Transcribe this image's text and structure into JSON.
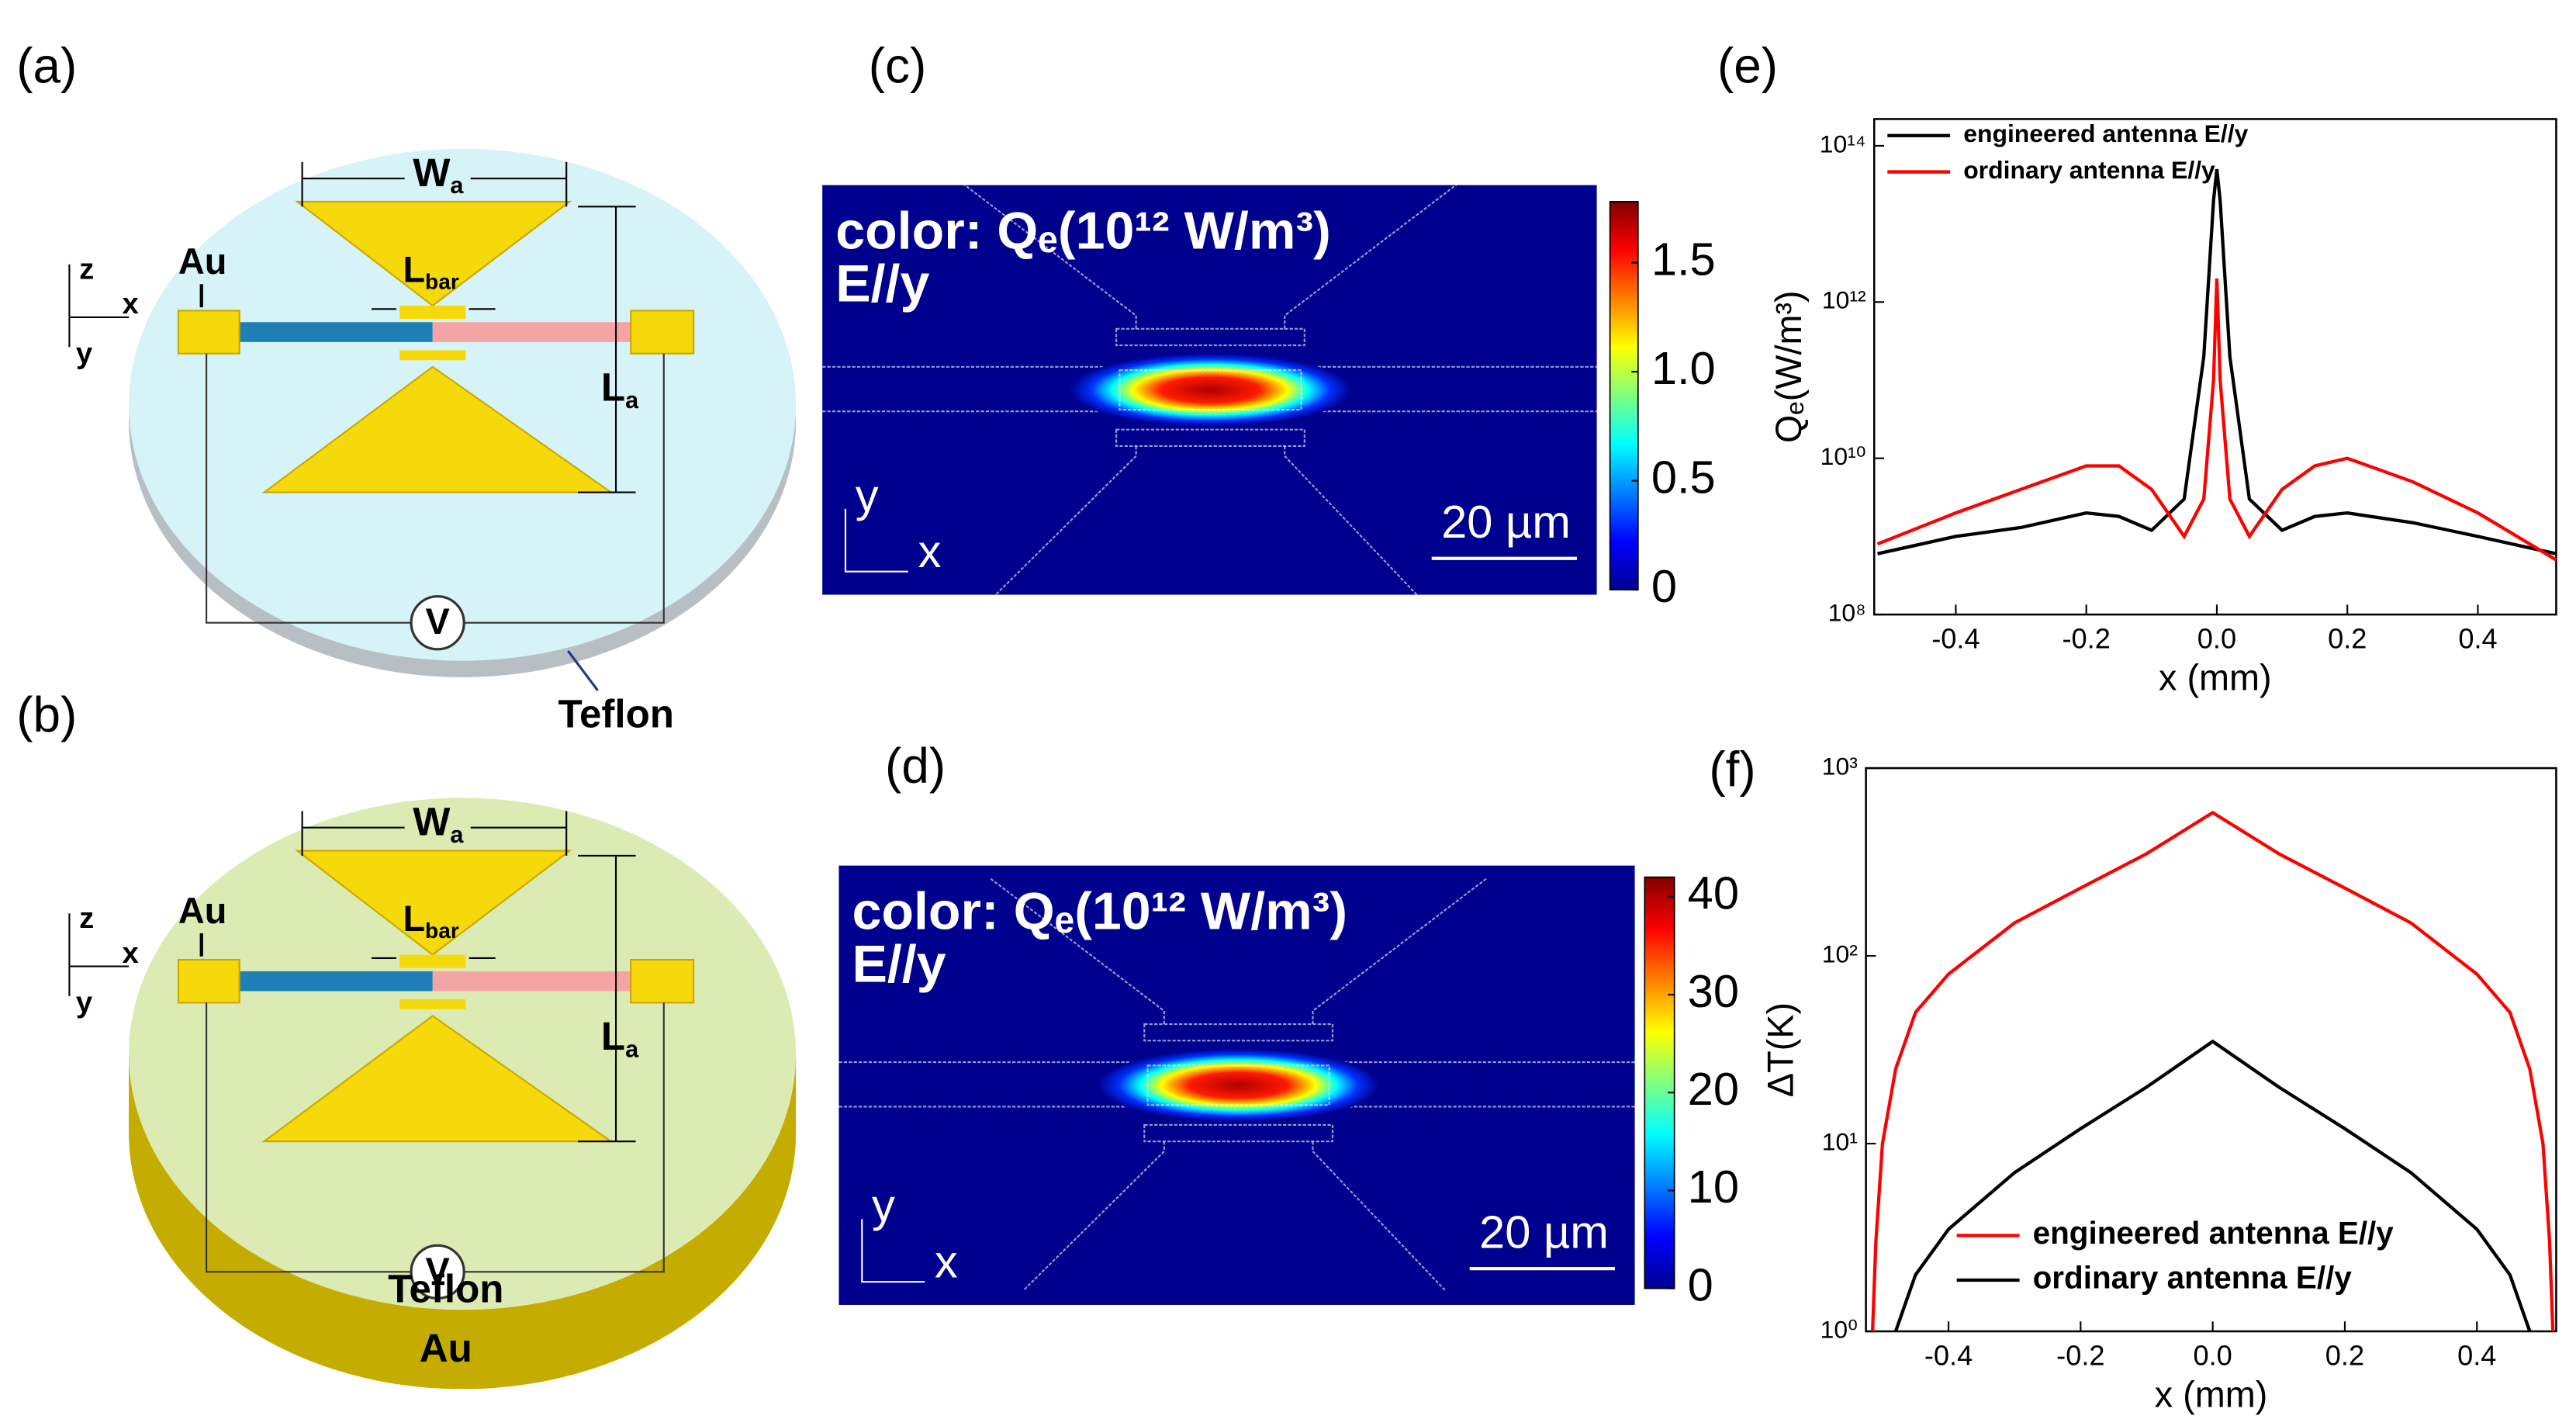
{
  "figure": {
    "diagrams": [
      {
        "label": "(a)",
        "wa": {
          "text": "W",
          "sub": "a"
        },
        "lbar": {
          "text": "L",
          "sub": "bar"
        },
        "la": {
          "text": "L",
          "sub": "a"
        },
        "au": "Au",
        "axes": [
          "z",
          "x",
          "y"
        ],
        "v": "V",
        "substrate": "Teflon"
      },
      {
        "label": "(b)",
        "wa": {
          "text": "W",
          "sub": "a"
        },
        "lbar": {
          "text": "L",
          "sub": "bar"
        },
        "la": {
          "text": "L",
          "sub": "a"
        },
        "au": "Au",
        "axes": [
          "z",
          "x",
          "y"
        ],
        "v": "V",
        "substrate": "Teflon",
        "base": "Au"
      }
    ],
    "fields": [
      {
        "label": "(c)",
        "title": "color: Qₑ(10¹² W/m³)",
        "polarization": "E//y",
        "axes": [
          "y",
          "x"
        ],
        "scalebar": "20 µm",
        "colorbar": {
          "lim": [
            0,
            1.78
          ],
          "ticks": [
            0,
            0.5,
            {
              "value": 1,
              "label": "1.0"
            },
            1.5
          ]
        }
      },
      {
        "label": "(d)",
        "title": "color: Qₑ(10¹² W/m³)",
        "polarization": "E//y",
        "axes": [
          "y",
          "x"
        ],
        "scalebar": "20 µm",
        "colorbar": {
          "lim": [
            0,
            42
          ],
          "ticks": [
            0,
            10,
            20,
            30,
            40
          ]
        }
      }
    ]
  },
  "chart_data": [
    {
      "type": "line",
      "panel_label": "(e)",
      "xlabel": "x (mm)",
      "ylabel": "Qₑ(W/m³)",
      "log_y": true,
      "legend": "upper left",
      "x": [
        -0.52,
        -0.4,
        -0.3,
        -0.2,
        -0.15,
        -0.1,
        -0.05,
        -0.02,
        -0.005,
        0,
        0.005,
        0.02,
        0.05,
        0.1,
        0.15,
        0.2,
        0.3,
        0.4,
        0.52
      ],
      "series": [
        {
          "name": "engineered antenna E//y",
          "color": "#000000",
          "values": [
            600000000.0,
            1000000000.0,
            1300000000.0,
            2000000000.0,
            1800000000.0,
            1200000000.0,
            3000000000.0,
            200000000000.0,
            20000000000000.0,
            50000000000000.0,
            20000000000000.0,
            200000000000.0,
            3000000000.0,
            1200000000.0,
            1800000000.0,
            2000000000.0,
            1500000000.0,
            1000000000.0,
            600000000.0
          ]
        },
        {
          "name": "ordinary  antenna E//y",
          "color": "#ff0000",
          "values": [
            800000000.0,
            2000000000.0,
            4000000000.0,
            8000000000.0,
            8000000000.0,
            4000000000.0,
            1000000000.0,
            3000000000.0,
            100000000000.0,
            2000000000000.0,
            100000000000.0,
            3000000000.0,
            1000000000.0,
            4000000000.0,
            8000000000.0,
            10000000000.0,
            5000000000.0,
            2000000000.0,
            500000000.0
          ]
        }
      ],
      "xlim": [
        -0.525,
        0.52
      ],
      "xticks": [
        -0.4,
        -0.2,
        {
          "value": 0,
          "label": "0.0"
        },
        0.2,
        0.4
      ],
      "ylim": [
        100000000.0,
        220000000000000.0
      ],
      "yticks": [
        {
          "value": 100000000.0,
          "label": "10⁸"
        },
        {
          "value": 10000000000.0,
          "label": "10¹⁰"
        },
        {
          "value": 1000000000000.0,
          "label": "10¹²"
        },
        {
          "value": 100000000000000.0,
          "label": "10¹⁴"
        }
      ]
    },
    {
      "type": "line",
      "panel_label": "(f)",
      "xlabel": "x (mm)",
      "ylabel": "ΔT(K)",
      "log_y": true,
      "legend": "lower center",
      "x": [
        -0.515,
        -0.51,
        -0.5,
        -0.48,
        -0.45,
        -0.4,
        -0.3,
        -0.2,
        -0.1,
        0,
        0.1,
        0.2,
        0.3,
        0.4,
        0.45,
        0.48,
        0.5,
        0.51,
        0.515
      ],
      "series": [
        {
          "name": "engineered antenna E//y",
          "color": "#ff0000",
          "values": [
            1,
            3,
            10,
            25,
            50,
            80,
            150,
            230,
            350,
            580,
            350,
            230,
            150,
            80,
            50,
            25,
            10,
            3,
            1
          ]
        },
        {
          "name": "ordinary antenna E//y",
          "color": "#000000",
          "values": [
            null,
            null,
            null,
            1,
            2,
            3.5,
            7,
            12,
            20,
            35,
            20,
            12,
            7,
            3.5,
            2,
            1,
            null,
            null,
            null
          ]
        }
      ],
      "xlim": [
        -0.525,
        0.52
      ],
      "xticks": [
        -0.4,
        -0.2,
        {
          "value": 0,
          "label": "0.0"
        },
        0.2,
        0.4
      ],
      "ylim": [
        1,
        1000
      ],
      "yticks": [
        {
          "value": 1,
          "label": "10⁰"
        },
        {
          "value": 10,
          "label": "10¹"
        },
        {
          "value": 100,
          "label": "10²"
        },
        {
          "value": 1000,
          "label": "10³"
        }
      ]
    }
  ]
}
